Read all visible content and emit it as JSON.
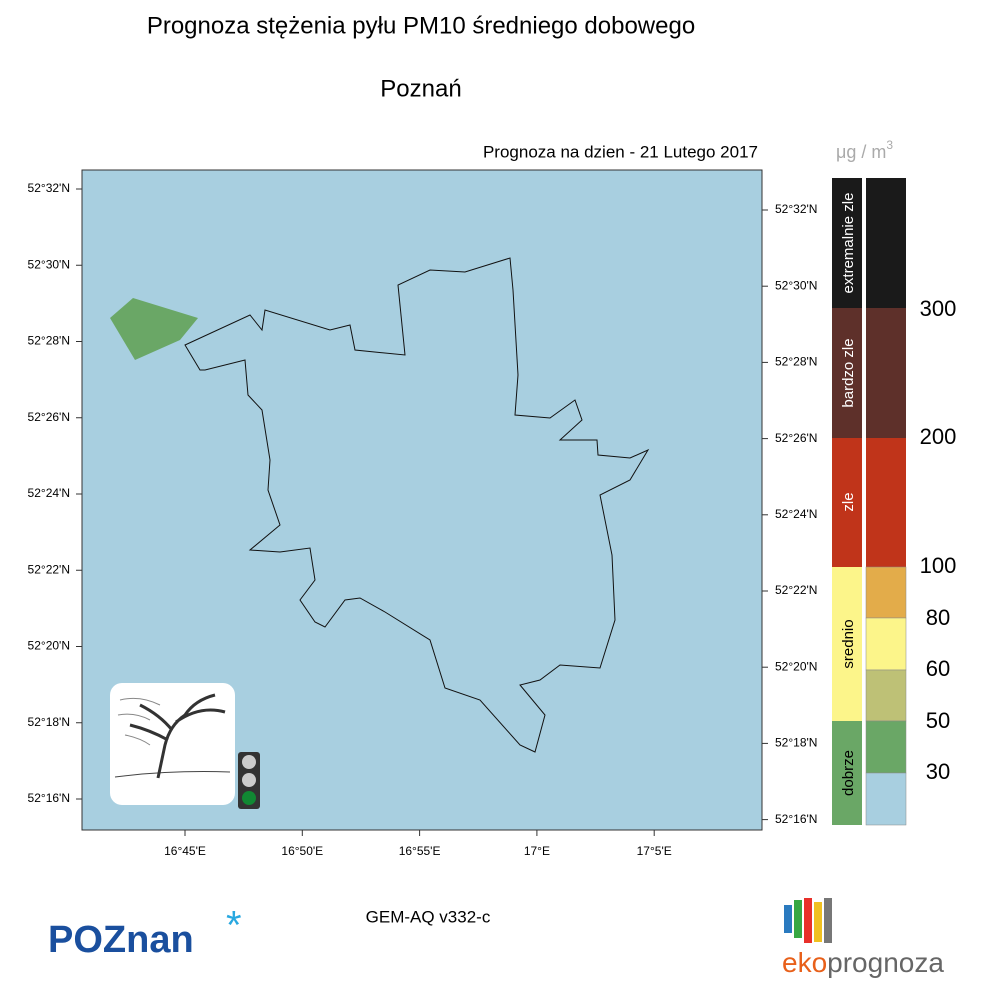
{
  "header": {
    "title": "Prognoza stężenia pyłu PM10 średniego dobowego",
    "city": "Poznań",
    "date": "Prognoza na dzien -  21 Lutego 2017"
  },
  "map": {
    "lat_labels_left": [
      "52°32'N",
      "52°30'N",
      "52°28'N",
      "52°26'N",
      "52°24'N",
      "52°22'N",
      "52°20'N",
      "52°18'N",
      "52°16'N"
    ],
    "lat_labels_right": [
      "52°32'N",
      "52°30'N",
      "52°28'N",
      "52°26'N",
      "52°24'N",
      "52°22'N",
      "52°20'N",
      "52°18'N",
      "52°16'N"
    ],
    "lon_labels": [
      "16°45'E",
      "16°50'E",
      "16°55'E",
      "17°E",
      "17°5'E"
    ]
  },
  "legend": {
    "unit": "μg / m",
    "unit_power": "3",
    "classes": [
      "extremalnie zle",
      "bardzo zle",
      "zle",
      "srednio",
      "dobrze"
    ],
    "thresholds": [
      "300",
      "200",
      "100",
      "80",
      "60",
      "50",
      "30"
    ]
  },
  "footer": {
    "model": "GEM-AQ v332-c",
    "logo_left": "POZnan",
    "logo_left_mark": "*",
    "logo_right_a": "eko",
    "logo_right_b": "prognoza"
  }
}
